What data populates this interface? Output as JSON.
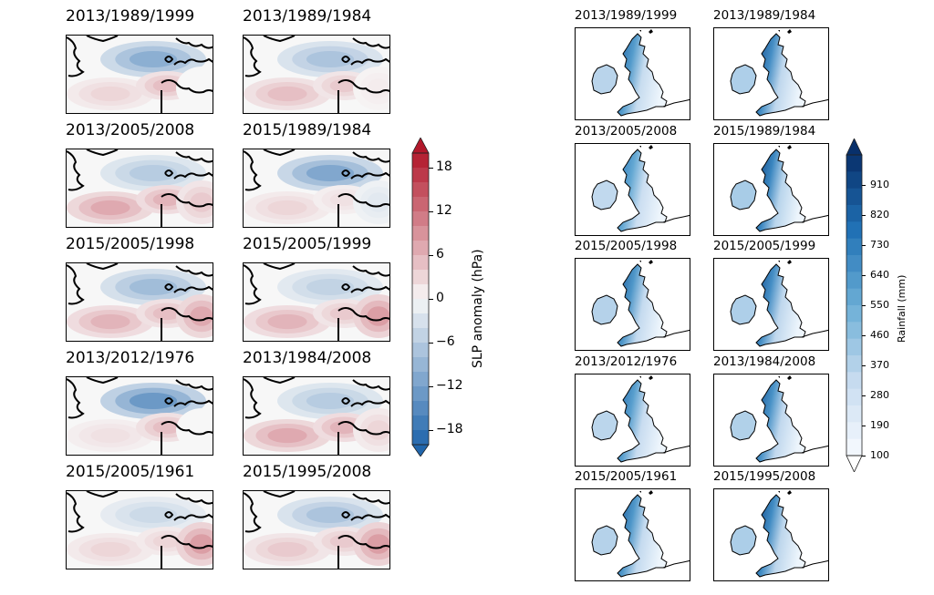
{
  "chart_data": [
    {
      "type": "heatmap",
      "name": "slp-maps",
      "panels": [
        {
          "title": "2013/1989/1999",
          "pattern": [
            -10,
            3,
            5,
            0
          ]
        },
        {
          "title": "2013/1989/1984",
          "pattern": [
            -7,
            5,
            4,
            1
          ]
        },
        {
          "title": "2013/2005/2008",
          "pattern": [
            -6,
            7,
            6,
            4
          ]
        },
        {
          "title": "2015/1989/1984",
          "pattern": [
            -11,
            3,
            2,
            -2
          ]
        },
        {
          "title": "2015/2005/1998",
          "pattern": [
            -8,
            6,
            5,
            7
          ]
        },
        {
          "title": "2015/2005/1999",
          "pattern": [
            -5,
            6,
            4,
            8
          ]
        },
        {
          "title": "2013/2012/1976",
          "pattern": [
            -13,
            2,
            5,
            0
          ]
        },
        {
          "title": "2013/1984/2008",
          "pattern": [
            -6,
            7,
            6,
            3
          ]
        },
        {
          "title": "2015/2005/1961",
          "pattern": [
            -4,
            3,
            3,
            8
          ]
        },
        {
          "title": "2015/1995/2008",
          "pattern": [
            -7,
            4,
            4,
            8
          ]
        }
      ],
      "colorbar": {
        "label": "SLP anomaly (hPa)",
        "ticks": [
          18,
          12,
          6,
          0,
          -6,
          -12,
          -18
        ],
        "range": [
          -20,
          20
        ],
        "colormap": "RdBu_r",
        "extend": "both"
      }
    },
    {
      "type": "heatmap",
      "name": "rainfall-maps",
      "panels": [
        {
          "title": "2013/1989/1999",
          "intensity": 0.82
        },
        {
          "title": "2013/1989/1984",
          "intensity": 0.9
        },
        {
          "title": "2013/2005/2008",
          "intensity": 0.75
        },
        {
          "title": "2015/1989/1984",
          "intensity": 0.95
        },
        {
          "title": "2015/2005/1998",
          "intensity": 0.85
        },
        {
          "title": "2015/2005/1999",
          "intensity": 0.9
        },
        {
          "title": "2013/2012/1976",
          "intensity": 0.8
        },
        {
          "title": "2013/1984/2008",
          "intensity": 0.88
        },
        {
          "title": "2015/2005/1961",
          "intensity": 0.85
        },
        {
          "title": "2015/1995/2008",
          "intensity": 0.92
        }
      ],
      "colorbar": {
        "label": "Rainfall (mm)",
        "ticks": [
          910,
          820,
          730,
          640,
          550,
          460,
          370,
          280,
          190,
          100
        ],
        "range": [
          100,
          1000
        ],
        "colormap": "Blues",
        "extend": "both"
      }
    }
  ]
}
